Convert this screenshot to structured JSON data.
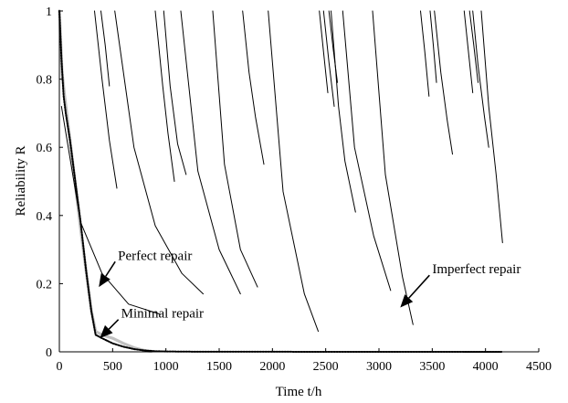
{
  "chart_data": {
    "type": "line",
    "xlabel": "Time t/h",
    "ylabel": "Reliability R",
    "xlim": [
      0,
      4500
    ],
    "ylim": [
      0,
      1
    ],
    "xticks": [
      "0",
      "500",
      "1000",
      "1500",
      "2000",
      "2500",
      "3000",
      "3500",
      "4000",
      "4500"
    ],
    "yticks": [
      "0",
      "0.2",
      "0.4",
      "0.6",
      "0.8",
      "1"
    ],
    "grid": false,
    "legend": "none",
    "series": [
      {
        "style": "gray",
        "color": "#c0c0c0",
        "x": [
          0,
          25,
          50,
          100,
          150,
          200,
          250,
          300,
          340,
          400,
          500,
          600,
          700,
          800,
          860
        ],
        "y": [
          1.0,
          0.82,
          0.75,
          0.62,
          0.49,
          0.36,
          0.24,
          0.12,
          0.06,
          0.05,
          0.04,
          0.025,
          0.012,
          0.004,
          0.001
        ]
      },
      {
        "style": "dotted",
        "color": "#000000",
        "x": [
          0,
          20,
          40,
          60,
          100,
          150,
          200,
          250,
          300,
          340,
          400,
          500,
          600,
          700,
          800,
          900,
          1000,
          1200,
          1500,
          2000,
          2500,
          3000,
          3500,
          4000,
          4150
        ],
        "y": [
          1.0,
          0.86,
          0.75,
          0.7,
          0.62,
          0.5,
          0.38,
          0.24,
          0.12,
          0.05,
          0.04,
          0.025,
          0.015,
          0.008,
          0.004,
          0.002,
          0.001,
          0.0005,
          0.0003,
          0.0002,
          0.0001,
          0.0001,
          0.0001,
          0.0001,
          0.0001
        ]
      },
      {
        "style": "solid",
        "color": "#000000",
        "x": [
          20,
          200,
          400,
          650,
          950
        ],
        "y": [
          0.72,
          0.38,
          0.23,
          0.14,
          0.11
        ]
      },
      {
        "style": "solid",
        "color": "#000000",
        "x": [
          330,
          400,
          470,
          540
        ],
        "y": [
          1.0,
          0.8,
          0.62,
          0.48
        ]
      },
      {
        "style": "solid",
        "color": "#000000",
        "x": [
          390,
          430,
          470
        ],
        "y": [
          1.0,
          0.9,
          0.78
        ]
      },
      {
        "style": "solid",
        "color": "#000000",
        "x": [
          900,
          970,
          1020,
          1080
        ],
        "y": [
          1.0,
          0.78,
          0.64,
          0.5
        ]
      },
      {
        "style": "solid",
        "color": "#000000",
        "x": [
          980,
          1040,
          1110,
          1190
        ],
        "y": [
          1.0,
          0.78,
          0.61,
          0.52
        ]
      },
      {
        "style": "solid",
        "color": "#000000",
        "x": [
          520,
          700,
          900,
          1150,
          1350
        ],
        "y": [
          1.0,
          0.6,
          0.37,
          0.23,
          0.17
        ]
      },
      {
        "style": "solid",
        "color": "#000000",
        "x": [
          1140,
          1300,
          1500,
          1700
        ],
        "y": [
          1.0,
          0.53,
          0.3,
          0.17
        ]
      },
      {
        "style": "solid",
        "color": "#000000",
        "x": [
          1720,
          1780,
          1840,
          1920
        ],
        "y": [
          1.0,
          0.82,
          0.69,
          0.55
        ]
      },
      {
        "style": "solid",
        "color": "#000000",
        "x": [
          1440,
          1550,
          1700,
          1860
        ],
        "y": [
          1.0,
          0.55,
          0.3,
          0.19
        ]
      },
      {
        "style": "solid",
        "color": "#000000",
        "x": [
          1960,
          2100,
          2300,
          2430
        ],
        "y": [
          1.0,
          0.47,
          0.17,
          0.06
        ]
      },
      {
        "style": "solid",
        "color": "#000000",
        "x": [
          2440,
          2480,
          2520
        ],
        "y": [
          1.0,
          0.88,
          0.76
        ]
      },
      {
        "style": "solid",
        "color": "#000000",
        "x": [
          2480,
          2530,
          2580
        ],
        "y": [
          1.0,
          0.85,
          0.72
        ]
      },
      {
        "style": "solid",
        "color": "#000000",
        "x": [
          2530,
          2570,
          2610
        ],
        "y": [
          1.0,
          0.89,
          0.79
        ]
      },
      {
        "style": "solid",
        "color": "#000000",
        "x": [
          2550,
          2620,
          2680,
          2780
        ],
        "y": [
          1.0,
          0.72,
          0.56,
          0.41
        ]
      },
      {
        "style": "solid",
        "color": "#000000",
        "x": [
          2660,
          2770,
          2950,
          3110
        ],
        "y": [
          1.0,
          0.6,
          0.34,
          0.18
        ]
      },
      {
        "style": "solid",
        "color": "#000000",
        "x": [
          2940,
          3060,
          3220,
          3320
        ],
        "y": [
          1.0,
          0.52,
          0.22,
          0.08
        ]
      },
      {
        "style": "solid",
        "color": "#000000",
        "x": [
          3390,
          3430,
          3470
        ],
        "y": [
          1.0,
          0.88,
          0.75
        ]
      },
      {
        "style": "solid",
        "color": "#000000",
        "x": [
          3480,
          3510,
          3540
        ],
        "y": [
          1.0,
          0.9,
          0.79
        ]
      },
      {
        "style": "solid",
        "color": "#000000",
        "x": [
          3520,
          3580,
          3640,
          3690
        ],
        "y": [
          1.0,
          0.82,
          0.68,
          0.58
        ]
      },
      {
        "style": "solid",
        "color": "#000000",
        "x": [
          3800,
          3840,
          3880
        ],
        "y": [
          1.0,
          0.88,
          0.76
        ]
      },
      {
        "style": "solid",
        "color": "#000000",
        "x": [
          3850,
          3890,
          3930
        ],
        "y": [
          1.0,
          0.9,
          0.79
        ]
      },
      {
        "style": "solid",
        "color": "#000000",
        "x": [
          3880,
          3930,
          3990,
          4030
        ],
        "y": [
          1.0,
          0.84,
          0.69,
          0.6
        ]
      },
      {
        "style": "solid",
        "color": "#000000",
        "x": [
          3960,
          4030,
          4100,
          4160
        ],
        "y": [
          1.0,
          0.72,
          0.52,
          0.32
        ]
      }
    ],
    "annotations": [
      {
        "text": "Perfect repair",
        "text_at": [
          550,
          0.27
        ],
        "point": [
          370,
          0.19
        ]
      },
      {
        "text": "Minimal repair",
        "text_at": [
          580,
          0.1
        ],
        "point": [
          380,
          0.04
        ]
      },
      {
        "text": "Imperfect repair",
        "text_at": [
          3500,
          0.23
        ],
        "point": [
          3200,
          0.13
        ]
      }
    ]
  }
}
